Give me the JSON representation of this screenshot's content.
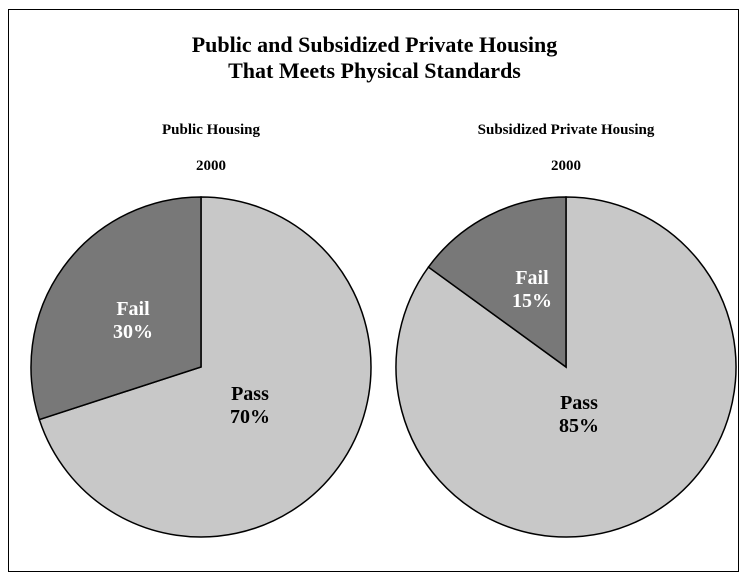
{
  "chart_data": {
    "type": "pie",
    "title_line1": "Public and Subsidized Private Housing",
    "title_line2": "That Meets Physical Standards",
    "colors": {
      "pass": "#c8c8c8",
      "fail": "#787878"
    },
    "charts": [
      {
        "title": "Public Housing",
        "year": "2000",
        "slices": [
          {
            "label": "Fail",
            "value": 30,
            "display": "30%"
          },
          {
            "label": "Pass",
            "value": 70,
            "display": "70%"
          }
        ]
      },
      {
        "title": "Subsidized Private Housing",
        "year": "2000",
        "slices": [
          {
            "label": "Fail",
            "value": 15,
            "display": "15%"
          },
          {
            "label": "Pass",
            "value": 85,
            "display": "85%"
          }
        ]
      }
    ]
  }
}
